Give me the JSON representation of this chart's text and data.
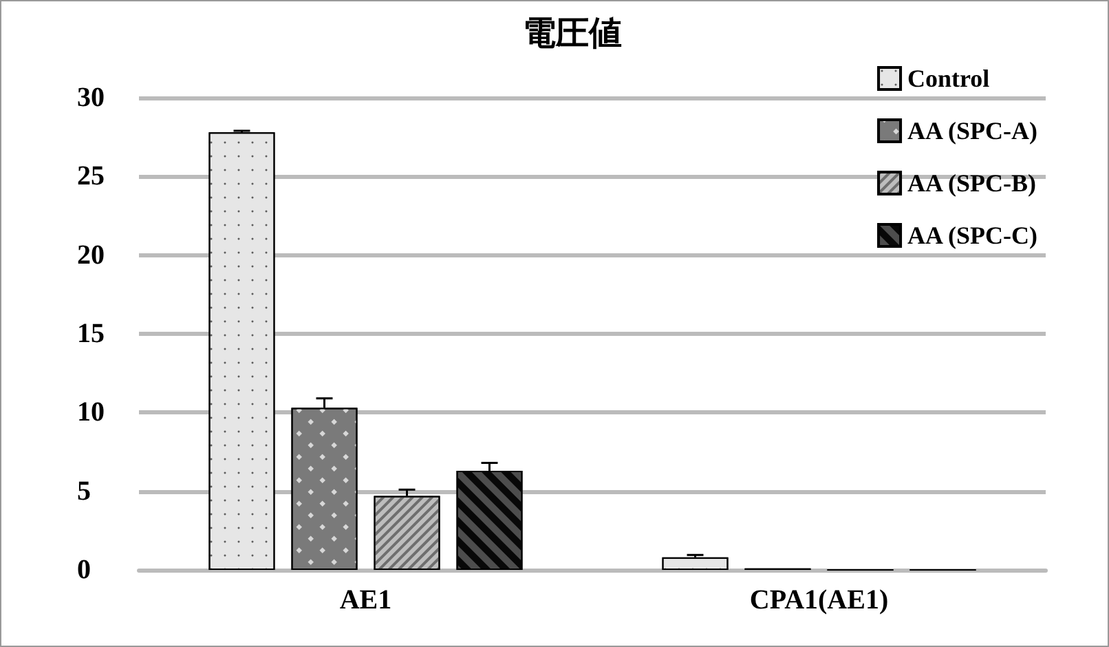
{
  "chart_data": {
    "type": "bar",
    "title": "電圧値",
    "categories": [
      "AE1",
      "CPA1(AE1)"
    ],
    "series": [
      {
        "name": "Control",
        "color": "#e6e6e6",
        "values": [
          27.8,
          0.8
        ],
        "errors": [
          [
            27.8,
            27.9
          ],
          [
            0.8,
            0.95
          ]
        ]
      },
      {
        "name": "AA (SPC-A)",
        "color": "#7a7a7a",
        "values": [
          10.3,
          0.1
        ],
        "errors": [
          [
            10.3,
            10.9
          ],
          null
        ]
      },
      {
        "name": "AA (SPC-B)",
        "color": "#bdbdbd",
        "values": [
          4.7,
          0
        ],
        "errors": [
          [
            4.7,
            5.1
          ],
          null
        ]
      },
      {
        "name": "AA (SPC-C)",
        "color": "#4d4d4d",
        "values": [
          6.3,
          0
        ],
        "errors": [
          [
            6.3,
            6.8
          ],
          null
        ]
      }
    ],
    "ylim": [
      0,
      30
    ],
    "yticks": [
      0,
      5,
      10,
      15,
      20,
      25,
      30
    ],
    "grid": "y",
    "legend": "top right"
  }
}
